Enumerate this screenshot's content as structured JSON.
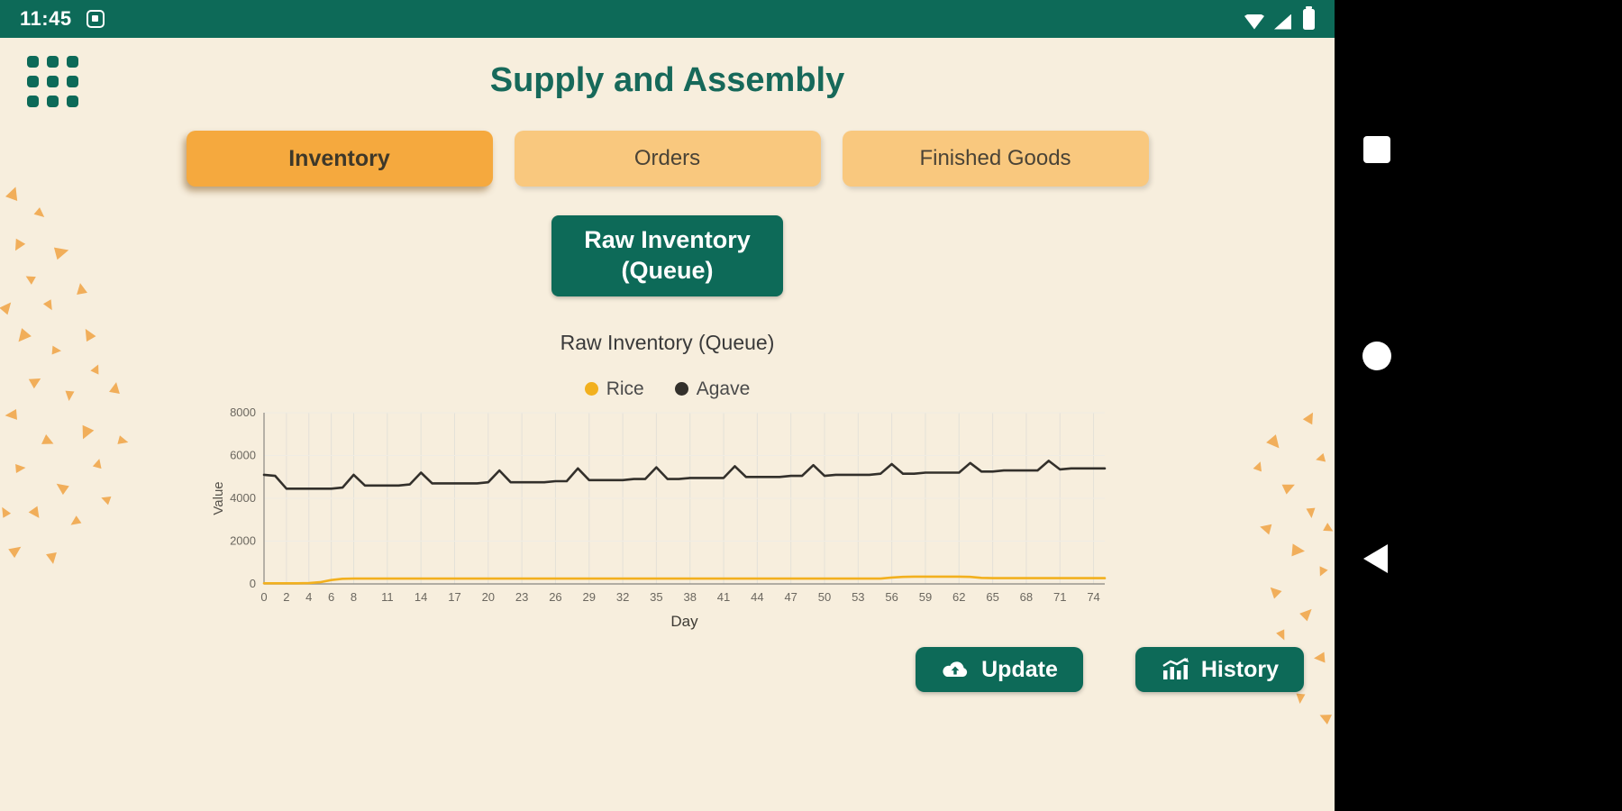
{
  "status_bar": {
    "time": "11:45",
    "icons": [
      "screenshot-icon",
      "wifi-icon",
      "cellular-signal-icon",
      "battery-icon"
    ]
  },
  "header": {
    "title": "Supply and Assembly"
  },
  "tabs": [
    {
      "label": "Inventory",
      "active": true
    },
    {
      "label": "Orders",
      "active": false
    },
    {
      "label": "Finished Goods",
      "active": false
    }
  ],
  "raw_inventory_button": {
    "line1": "Raw Inventory",
    "line2": "(Queue)"
  },
  "actions": {
    "update_label": "Update",
    "history_label": "History"
  },
  "nav_bar": {
    "buttons": [
      "recents",
      "home",
      "back"
    ]
  },
  "colors": {
    "teal": "#0d6a58",
    "cream": "#f7eedd",
    "active_tab": "#f5a93e",
    "inactive_tab": "#f9c87e",
    "rice": "#f2b01e",
    "agave": "#33302b",
    "confetti": "#f0a64b"
  },
  "chart_data": {
    "type": "line",
    "title": "Raw Inventory (Queue)",
    "xlabel": "Day",
    "ylabel": "Value",
    "xlim": [
      0,
      75
    ],
    "ylim": [
      0,
      8000
    ],
    "y_ticks": [
      0,
      2000,
      4000,
      6000,
      8000
    ],
    "x_ticks": [
      0,
      2,
      4,
      6,
      8,
      11,
      14,
      17,
      20,
      23,
      26,
      29,
      32,
      35,
      38,
      41,
      44,
      47,
      50,
      53,
      56,
      59,
      62,
      65,
      68,
      71,
      74
    ],
    "x_start": 0,
    "x_step": 1,
    "grid": true,
    "legend_position": "top",
    "series": [
      {
        "name": "Rice",
        "color": "#f2b01e",
        "values": [
          30,
          30,
          30,
          30,
          40,
          80,
          180,
          240,
          250,
          250,
          250,
          250,
          250,
          250,
          250,
          250,
          250,
          250,
          250,
          250,
          250,
          250,
          250,
          250,
          250,
          250,
          250,
          250,
          250,
          250,
          250,
          250,
          250,
          250,
          250,
          250,
          250,
          250,
          250,
          250,
          250,
          250,
          250,
          250,
          250,
          250,
          250,
          250,
          250,
          250,
          250,
          250,
          250,
          250,
          250,
          250,
          300,
          330,
          340,
          340,
          340,
          340,
          340,
          330,
          280,
          270,
          270,
          270,
          270,
          270,
          270,
          270,
          270,
          270,
          270,
          270
        ]
      },
      {
        "name": "Agave",
        "color": "#33302b",
        "values": [
          5100,
          5050,
          4450,
          4450,
          4450,
          4450,
          4450,
          4500,
          5100,
          4600,
          4600,
          4600,
          4600,
          4650,
          5200,
          4700,
          4700,
          4700,
          4700,
          4700,
          4750,
          5300,
          4750,
          4750,
          4750,
          4750,
          4800,
          4800,
          5400,
          4850,
          4850,
          4850,
          4850,
          4900,
          4900,
          5450,
          4900,
          4900,
          4950,
          4950,
          4950,
          4950,
          5500,
          5000,
          5000,
          5000,
          5000,
          5050,
          5050,
          5550,
          5050,
          5100,
          5100,
          5100,
          5100,
          5150,
          5600,
          5150,
          5150,
          5200,
          5200,
          5200,
          5200,
          5650,
          5250,
          5250,
          5300,
          5300,
          5300,
          5300,
          5750,
          5350,
          5400,
          5400,
          5400,
          5400
        ]
      }
    ]
  }
}
